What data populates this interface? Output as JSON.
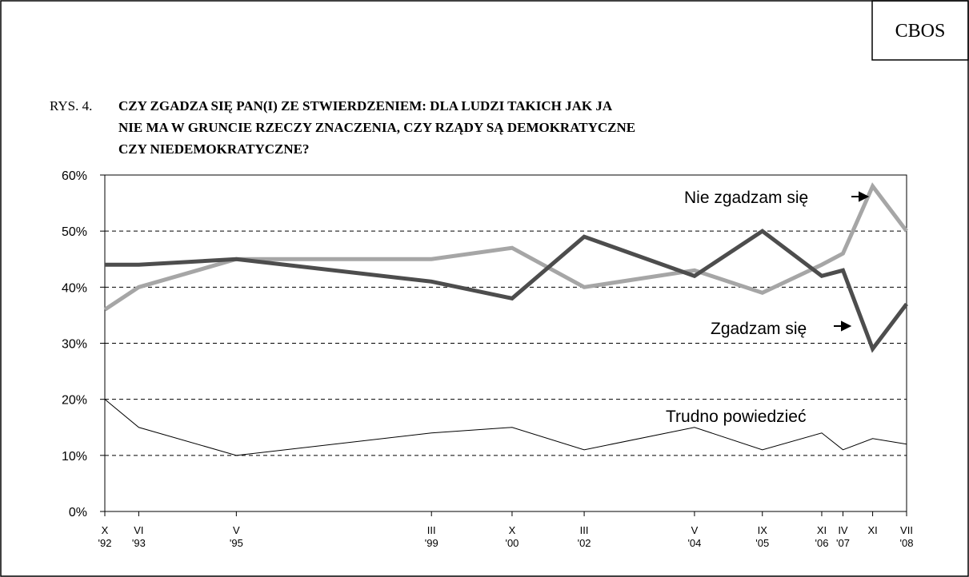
{
  "chart_data": {
    "type": "line",
    "badge": "CBOS",
    "figure_label": "RYS. 4.",
    "title_lines": [
      "CZY ZGADZA SIĘ PAN(I) ZE STWIERDZENIEM: DLA LUDZI TAKICH JAK JA",
      "NIE MA W GRUNCIE RZECZY ZNACZENIA, CZY RZĄDY SĄ DEMOKRATYCZNE",
      "CZY NIEDEMOKRATYCZNE?"
    ],
    "categories": [
      {
        "month": "X",
        "year": "'92"
      },
      {
        "month": "VI",
        "year": "'93"
      },
      {
        "month": "V",
        "year": "'95"
      },
      {
        "month": "III",
        "year": "'99"
      },
      {
        "month": "X",
        "year": "'00"
      },
      {
        "month": "III",
        "year": "'02"
      },
      {
        "month": "V",
        "year": "'04"
      },
      {
        "month": "IX",
        "year": "'05"
      },
      {
        "month": "XI",
        "year": "'06"
      },
      {
        "month": "IV",
        "year": "'07"
      },
      {
        "month": "XI",
        "year": null
      },
      {
        "month": "VII",
        "year": "'08"
      }
    ],
    "series": [
      {
        "name": "Nie zgadzam się",
        "color": "#a6a6a6",
        "width": 5,
        "values": [
          36,
          40,
          45,
          45,
          47,
          40,
          43,
          39,
          44,
          46,
          58,
          50
        ]
      },
      {
        "name": "Zgadzam się",
        "color": "#4d4d4d",
        "width": 5,
        "values": [
          44,
          44,
          45,
          41,
          38,
          49,
          42,
          50,
          42,
          43,
          29,
          37
        ]
      },
      {
        "name": "Trudno powiedzieć",
        "color": "#000000",
        "width": 1,
        "values": [
          20,
          15,
          10,
          14,
          15,
          11,
          15,
          11,
          14,
          11,
          13,
          12
        ]
      }
    ],
    "ylim": [
      0,
      60
    ],
    "yticks": [
      {
        "value": 0,
        "label": "0%"
      },
      {
        "value": 10,
        "label": "10%"
      },
      {
        "value": 20,
        "label": "20%"
      },
      {
        "value": 30,
        "label": "30%"
      },
      {
        "value": 40,
        "label": "40%"
      },
      {
        "value": 50,
        "label": "50%"
      },
      {
        "value": 60,
        "label": "60%"
      }
    ],
    "grid": true
  }
}
